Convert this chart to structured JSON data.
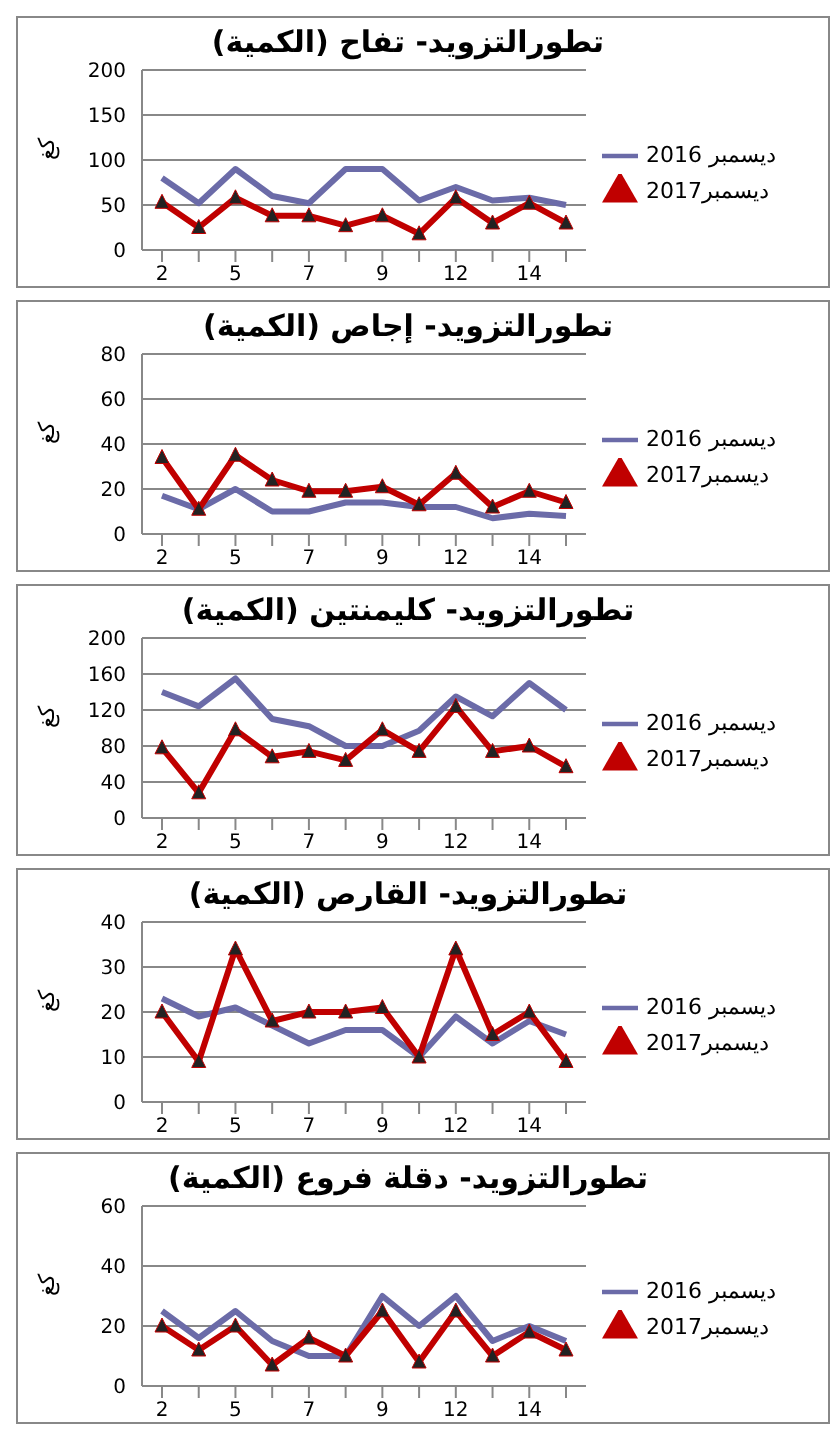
{
  "chart_data": [
    {
      "type": "line",
      "title": "تطورالتزويد- تفاح (الكمية)",
      "ylabel": "كغ",
      "categories": [
        "2",
        null,
        "5",
        null,
        "7",
        null,
        "9",
        null,
        "12",
        null,
        "14",
        null
      ],
      "ylim": [
        0,
        200
      ],
      "yticks": [
        0,
        50,
        100,
        150,
        200
      ],
      "grid": "y",
      "legend": "right",
      "series": [
        {
          "name": "ديسمبر 2016",
          "color": "#6b6ba8",
          "marker": "none",
          "values": [
            80,
            52,
            90,
            60,
            52,
            90,
            90,
            55,
            70,
            55,
            58,
            50
          ]
        },
        {
          "name": "ديسمبر2017",
          "color": "#c00000",
          "marker": "triangle",
          "values": [
            53,
            25,
            58,
            38,
            38,
            27,
            38,
            18,
            58,
            30,
            52,
            30
          ]
        }
      ]
    },
    {
      "type": "line",
      "title": "تطورالتزويد- إجاص (الكمية)",
      "ylabel": "كغ",
      "categories": [
        "2",
        null,
        "5",
        null,
        "7",
        null,
        "9",
        null,
        "12",
        null,
        "14",
        null
      ],
      "ylim": [
        0,
        80
      ],
      "yticks": [
        0,
        20,
        40,
        60,
        80
      ],
      "grid": "y",
      "legend": "right",
      "series": [
        {
          "name": "ديسمبر 2016",
          "color": "#6b6ba8",
          "marker": "none",
          "values": [
            17,
            11,
            20,
            10,
            10,
            14,
            14,
            12,
            12,
            7,
            9,
            8
          ]
        },
        {
          "name": "ديسمبر2017",
          "color": "#c00000",
          "marker": "triangle",
          "values": [
            34,
            11,
            35,
            24,
            19,
            19,
            21,
            13,
            27,
            12,
            19,
            14
          ]
        }
      ]
    },
    {
      "type": "line",
      "title": "تطورالتزويد- كليمنتين (الكمية)",
      "ylabel": "كغ",
      "categories": [
        "2",
        null,
        "5",
        null,
        "7",
        null,
        "9",
        null,
        "12",
        null,
        "14",
        null
      ],
      "ylim": [
        0,
        200
      ],
      "yticks": [
        0,
        40,
        80,
        120,
        160,
        200
      ],
      "grid": "y",
      "legend": "right",
      "series": [
        {
          "name": "ديسمبر 2016",
          "color": "#6b6ba8",
          "marker": "none",
          "values": [
            140,
            124,
            155,
            110,
            102,
            80,
            80,
            97,
            135,
            113,
            150,
            120
          ]
        },
        {
          "name": "ديسمبر2017",
          "color": "#c00000",
          "marker": "triangle",
          "values": [
            78,
            28,
            98,
            68,
            74,
            64,
            98,
            74,
            124,
            74,
            80,
            57
          ]
        }
      ]
    },
    {
      "type": "line",
      "title": "تطورالتزويد- القارص (الكمية)",
      "ylabel": "كغ",
      "categories": [
        "2",
        null,
        "5",
        null,
        "7",
        null,
        "9",
        null,
        "12",
        null,
        "14",
        null
      ],
      "ylim": [
        0,
        40
      ],
      "yticks": [
        0,
        10,
        20,
        30,
        40
      ],
      "grid": "y",
      "legend": "right",
      "series": [
        {
          "name": "ديسمبر 2016",
          "color": "#6b6ba8",
          "marker": "none",
          "values": [
            23,
            19,
            21,
            17,
            13,
            16,
            16,
            10,
            19,
            13,
            18,
            15
          ]
        },
        {
          "name": "ديسمبر2017",
          "color": "#c00000",
          "marker": "triangle",
          "values": [
            20,
            9,
            34,
            18,
            20,
            20,
            21,
            10,
            34,
            15,
            20,
            9
          ]
        }
      ]
    },
    {
      "type": "line",
      "title": "تطورالتزويد- دقلة فروع (الكمية)",
      "ylabel": "كغ",
      "categories": [
        "2",
        null,
        "5",
        null,
        "7",
        null,
        "9",
        null,
        "12",
        null,
        "14",
        null
      ],
      "ylim": [
        0,
        60
      ],
      "yticks": [
        0,
        20,
        40,
        60
      ],
      "grid": "y",
      "legend": "right",
      "series": [
        {
          "name": "ديسمبر 2016",
          "color": "#6b6ba8",
          "marker": "none",
          "values": [
            25,
            16,
            25,
            15,
            10,
            10,
            30,
            20,
            30,
            15,
            20,
            15
          ]
        },
        {
          "name": "ديسمبر2017",
          "color": "#c00000",
          "marker": "triangle",
          "values": [
            20,
            12,
            20,
            7,
            16,
            10,
            25,
            8,
            25,
            10,
            18,
            12
          ]
        }
      ]
    }
  ]
}
